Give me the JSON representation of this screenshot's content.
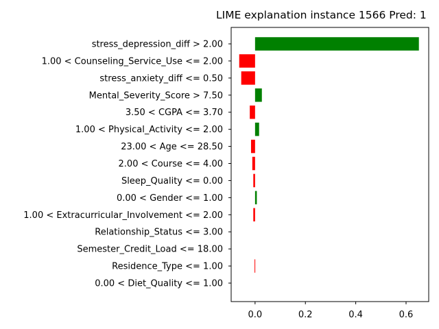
{
  "chart_data": {
    "type": "bar",
    "orientation": "horizontal",
    "title": "LIME explanation instance 1566 Pred: 1",
    "xlabel": "",
    "ylabel": "",
    "xlim": [
      -0.095,
      0.69
    ],
    "xticks": [
      0.0,
      0.2,
      0.4,
      0.6
    ],
    "xtick_labels": [
      "0.0",
      "0.2",
      "0.4",
      "0.6"
    ],
    "grid": false,
    "positive_color": "#008000",
    "negative_color": "#ff0000",
    "features": [
      "stress_depression_diff > 2.00",
      "1.00 < Counseling_Service_Use <= 2.00",
      "stress_anxiety_diff <= 0.50",
      "Mental_Severity_Score > 7.50",
      "3.50 < CGPA <= 3.70",
      "1.00 < Physical_Activity <= 2.00",
      "23.00 < Age <= 28.50",
      "2.00 < Course <= 4.00",
      "Sleep_Quality <= 0.00",
      "0.00 < Gender <= 1.00",
      "1.00 < Extracurricular_Involvement <= 2.00",
      "Relationship_Status <= 3.00",
      "Semester_Credit_Load <= 18.00",
      "Residence_Type <= 1.00",
      "0.00 < Diet_Quality <= 1.00"
    ],
    "values": [
      0.651,
      -0.063,
      -0.055,
      0.027,
      -0.021,
      0.016,
      -0.016,
      -0.011,
      -0.007,
      0.007,
      -0.007,
      0.0,
      0.0,
      -0.002,
      0.0
    ]
  }
}
